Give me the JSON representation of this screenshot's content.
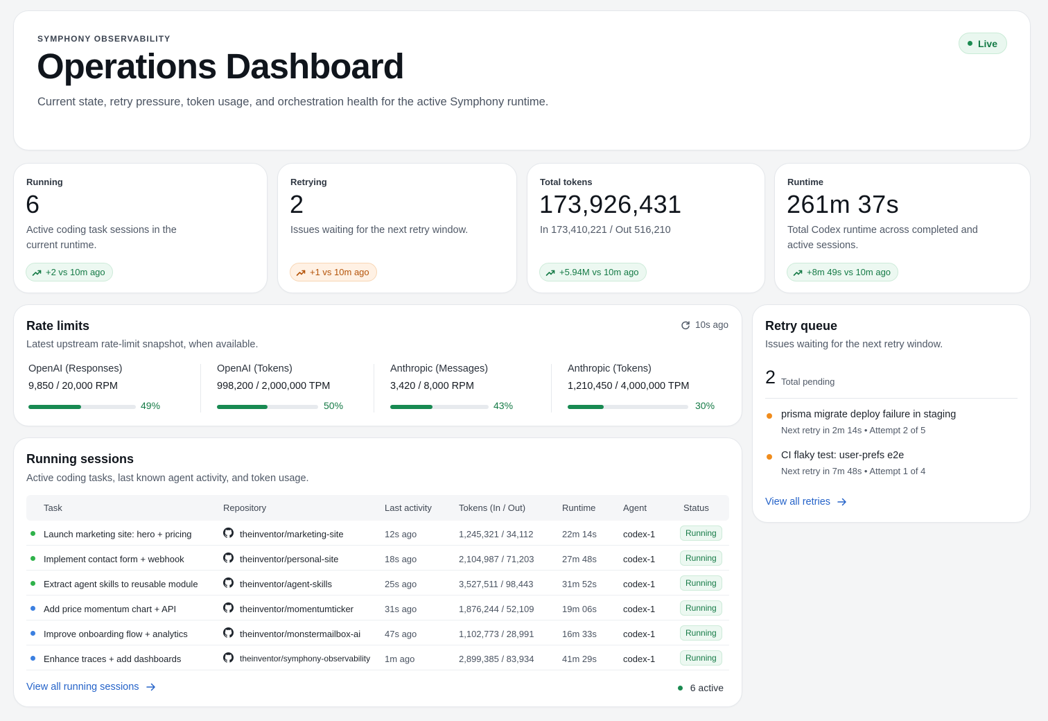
{
  "header": {
    "eyebrow": "SYMPHONY OBSERVABILITY",
    "title": "Operations Dashboard",
    "description": "Current state, retry pressure, token usage, and orchestration health for the active Symphony runtime.",
    "live_label": "Live"
  },
  "stats": [
    {
      "label": "Running",
      "value": "6",
      "description": "Active coding task sessions in the current runtime.",
      "delta": "+2 vs 10m ago",
      "tone": "green"
    },
    {
      "label": "Retrying",
      "value": "2",
      "description": "Issues waiting for the next retry window.",
      "delta": "+1 vs 10m ago",
      "tone": "orange"
    },
    {
      "label": "Total tokens",
      "value": "173,926,431",
      "description": "In 173,410,221 / Out 516,210",
      "delta": "+5.94M vs 10m ago",
      "tone": "green"
    },
    {
      "label": "Runtime",
      "value": "261m 37s",
      "description": "Total Codex runtime across completed and active sessions.",
      "delta": "+8m 49s vs 10m ago",
      "tone": "green"
    }
  ],
  "rate_limits": {
    "title": "Rate limits",
    "subtitle": "Latest upstream rate-limit snapshot, when available.",
    "updated": "10s ago",
    "items": [
      {
        "name": "OpenAI (Responses)",
        "value": "9,850 / 20,000 RPM",
        "percent_label": "49%",
        "fraction": 0.49
      },
      {
        "name": "OpenAI (Tokens)",
        "value": "998,200 / 2,000,000 TPM",
        "percent_label": "50%",
        "fraction": 0.5
      },
      {
        "name": "Anthropic (Messages)",
        "value": "3,420 / 8,000 RPM",
        "percent_label": "43%",
        "fraction": 0.43
      },
      {
        "name": "Anthropic (Tokens)",
        "value": "1,210,450 / 4,000,000 TPM",
        "percent_label": "30%",
        "fraction": 0.3
      }
    ]
  },
  "sessions": {
    "title": "Running sessions",
    "subtitle": "Active coding tasks, last known agent activity, and token usage.",
    "columns": [
      "Task",
      "Repository",
      "Last activity",
      "Tokens (In / Out)",
      "Runtime",
      "Agent",
      "Status"
    ],
    "rows": [
      {
        "task": "Launch marketing site: hero + pricing",
        "repo": "theinventor/marketing-site",
        "activity": "12s ago",
        "tokens": "1,245,321 / 34,112",
        "runtime": "22m 14s",
        "agent": "codex-1",
        "status": "Running",
        "dot": "#2fb24a"
      },
      {
        "task": "Implement contact form + webhook",
        "repo": "theinventor/personal-site",
        "activity": "18s ago",
        "tokens": "2,104,987 / 71,203",
        "runtime": "27m 48s",
        "agent": "codex-1",
        "status": "Running",
        "dot": "#2fb24a"
      },
      {
        "task": "Extract agent skills to reusable module",
        "repo": "theinventor/agent-skills",
        "activity": "25s ago",
        "tokens": "3,527,511 / 98,443",
        "runtime": "31m 52s",
        "agent": "codex-1",
        "status": "Running",
        "dot": "#2fb24a"
      },
      {
        "task": "Add price momentum chart + API",
        "repo": "theinventor/momentumticker",
        "activity": "31s ago",
        "tokens": "1,876,244 / 52,109",
        "runtime": "19m 06s",
        "agent": "codex-1",
        "status": "Running",
        "dot": "#3b7fe0"
      },
      {
        "task": "Improve onboarding flow + analytics",
        "repo": "theinventor/monstermailbox-ai",
        "activity": "47s ago",
        "tokens": "1,102,773 / 28,991",
        "runtime": "16m 33s",
        "agent": "codex-1",
        "status": "Running",
        "dot": "#3b7fe0"
      },
      {
        "task": "Enhance traces + add dashboards",
        "repo": "theinventor/symphony-observability",
        "activity": "1m ago",
        "tokens": "2,899,385 / 83,934",
        "runtime": "41m 29s",
        "agent": "codex-1",
        "status": "Running",
        "dot": "#3b7fe0"
      }
    ],
    "view_all": "View all running sessions",
    "active_count": "6 active"
  },
  "retry_queue": {
    "title": "Retry queue",
    "subtitle": "Issues waiting for the next retry window.",
    "count": "2",
    "count_label": "Total pending",
    "items": [
      {
        "title": "prisma migrate deploy failure in staging",
        "meta": "Next retry in 2m 14s • Attempt 2 of 5"
      },
      {
        "title": "CI flaky test: user-prefs e2e",
        "meta": "Next retry in 7m 48s • Attempt 1 of 4"
      }
    ],
    "view_all": "View all retries"
  },
  "colors": {
    "accent_green": "#157a46",
    "retry_orange": "#f08c1c",
    "link_blue": "#2563c9",
    "live_dot": "#1a8a50"
  },
  "icons": {
    "trend": "trend-up-icon",
    "refresh": "refresh-icon",
    "repo": "github-icon",
    "arrow": "arrow-right-icon"
  }
}
